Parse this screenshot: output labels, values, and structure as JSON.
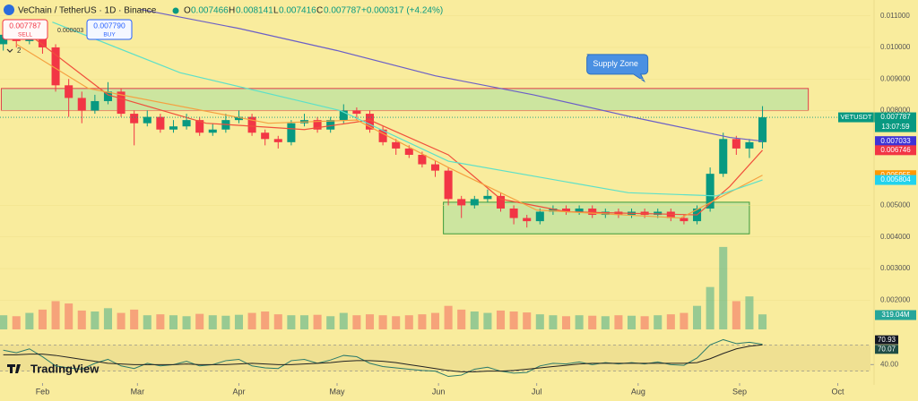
{
  "header": {
    "title": "VeChain / TetherUS · 1D · Binance",
    "o_label": "O",
    "open": "0.007466",
    "h_label": "H",
    "high": "0.008141",
    "l_label": "L",
    "low": "0.007416",
    "c_label": "C",
    "close": "0.007787",
    "change": "+0.000317 (+4.24%)",
    "sell_price": "0.007787",
    "sell": "SELL",
    "spread": "0.000003",
    "buy_price": "0.007790",
    "buy": "BUY",
    "indicators_count": "2",
    "brand": "TradingView"
  },
  "chart_data": {
    "type": "candlestick",
    "x": [
      -12,
      -8,
      -4,
      0,
      4,
      8,
      12,
      16,
      20,
      24,
      28,
      32,
      36,
      40,
      44,
      48,
      52,
      56,
      60,
      64,
      68,
      72,
      76,
      80,
      84,
      88,
      92,
      96,
      100,
      104,
      108,
      112,
      116,
      120,
      124,
      128,
      132,
      136,
      140,
      144,
      148,
      152,
      156,
      160,
      164,
      168,
      172,
      176,
      180,
      184,
      188,
      192,
      196,
      200,
      204,
      208,
      212,
      216,
      220
    ],
    "open": [
      0.0101,
      0.0104,
      0.0102,
      0.0106,
      0.01,
      0.0088,
      0.0084,
      0.008,
      0.0083,
      0.0086,
      0.0079,
      0.0076,
      0.0078,
      0.0074,
      0.0075,
      0.0077,
      0.0073,
      0.0074,
      0.0077,
      0.0078,
      0.0073,
      0.0071,
      0.007,
      0.0076,
      0.0077,
      0.0074,
      0.0077,
      0.008,
      0.0079,
      0.0074,
      0.007,
      0.0068,
      0.0066,
      0.0063,
      0.0061,
      0.0052,
      0.005,
      0.0052,
      0.0053,
      0.0049,
      0.0046,
      0.0045,
      0.0048,
      0.0049,
      0.0048,
      0.0049,
      0.0047,
      0.0048,
      0.0047,
      0.0048,
      0.0047,
      0.0048,
      0.0046,
      0.0045,
      0.0049,
      0.006,
      0.0071,
      0.0068,
      0.007
    ],
    "high": [
      0.0106,
      0.0107,
      0.0108,
      0.0107,
      0.0101,
      0.009,
      0.0086,
      0.0085,
      0.0089,
      0.0087,
      0.008,
      0.008,
      0.0079,
      0.0077,
      0.0079,
      0.0078,
      0.0076,
      0.0079,
      0.008,
      0.0079,
      0.0074,
      0.0072,
      0.0077,
      0.0079,
      0.0078,
      0.0078,
      0.0082,
      0.0081,
      0.008,
      0.0075,
      0.0071,
      0.0069,
      0.0067,
      0.0064,
      0.0062,
      0.0053,
      0.0053,
      0.0055,
      0.0054,
      0.005,
      0.0047,
      0.0049,
      0.005,
      0.005,
      0.005,
      0.005,
      0.0049,
      0.0049,
      0.0049,
      0.0049,
      0.0049,
      0.0049,
      0.0047,
      0.005,
      0.0062,
      0.0073,
      0.0072,
      0.0071,
      0.008141
    ],
    "low": [
      0.0099,
      0.01,
      0.0101,
      0.0098,
      0.0086,
      0.0078,
      0.0076,
      0.0079,
      0.0082,
      0.0078,
      0.0069,
      0.0075,
      0.0073,
      0.0073,
      0.0074,
      0.0072,
      0.0072,
      0.0073,
      0.0076,
      0.0072,
      0.0069,
      0.0068,
      0.0069,
      0.0075,
      0.0073,
      0.0073,
      0.0076,
      0.0077,
      0.0073,
      0.0069,
      0.0066,
      0.0065,
      0.0062,
      0.0059,
      0.005,
      0.0046,
      0.0049,
      0.0051,
      0.0048,
      0.0044,
      0.0043,
      0.0044,
      0.0047,
      0.0047,
      0.0047,
      0.0046,
      0.0046,
      0.0046,
      0.0046,
      0.0046,
      0.0046,
      0.0045,
      0.0044,
      0.0044,
      0.0048,
      0.0059,
      0.0066,
      0.0065,
      0.0068
    ],
    "close": [
      0.0104,
      0.0102,
      0.0106,
      0.01,
      0.0088,
      0.0084,
      0.008,
      0.0083,
      0.0086,
      0.0079,
      0.0076,
      0.0078,
      0.0074,
      0.0075,
      0.0077,
      0.0073,
      0.0074,
      0.0077,
      0.0078,
      0.0073,
      0.0071,
      0.007,
      0.0076,
      0.0077,
      0.0074,
      0.0077,
      0.008,
      0.0079,
      0.0074,
      0.007,
      0.0068,
      0.0066,
      0.0063,
      0.0061,
      0.0052,
      0.005,
      0.0052,
      0.0053,
      0.0049,
      0.0046,
      0.0045,
      0.0048,
      0.0049,
      0.0048,
      0.0049,
      0.0047,
      0.0048,
      0.0047,
      0.0048,
      0.0047,
      0.0048,
      0.0046,
      0.0045,
      0.0049,
      0.006,
      0.0071,
      0.0068,
      0.007,
      0.007787
    ],
    "up_color": "#089981",
    "down_color": "#f23645",
    "symbol": "VETUSDT",
    "countdown": "13:07:59",
    "xlim": [
      -13,
      253
    ],
    "xticks": [
      {
        "value": 0,
        "label": "Feb"
      },
      {
        "value": 29,
        "label": "Mar"
      },
      {
        "value": 60,
        "label": "Apr"
      },
      {
        "value": 90,
        "label": "May"
      },
      {
        "value": 121,
        "label": "Jun"
      },
      {
        "value": 151,
        "label": "Jul"
      },
      {
        "value": 182,
        "label": "Aug"
      },
      {
        "value": 213,
        "label": "Sep"
      },
      {
        "value": 243,
        "label": "Oct"
      }
    ],
    "ylim": [
      0.0015,
      0.0115
    ],
    "yticks": [
      {
        "value": 0.002,
        "label": "0.002000"
      },
      {
        "value": 0.003,
        "label": "0.003000"
      },
      {
        "value": 0.004,
        "label": "0.004000"
      },
      {
        "value": 0.005,
        "label": "0.005000"
      },
      {
        "value": 0.008,
        "label": "0.008000"
      },
      {
        "value": 0.009,
        "label": "0.009000"
      },
      {
        "value": 0.01,
        "label": "0.010000"
      },
      {
        "value": 0.011,
        "label": "0.011000"
      }
    ],
    "lines": [
      {
        "color": "#6b5fc7",
        "label_color": "#3f33d6",
        "x": [
          30,
          60,
          90,
          120,
          150,
          180,
          210,
          220
        ],
        "values": [
          0.0112,
          0.0106,
          0.0099,
          0.0091,
          0.0085,
          0.0078,
          0.00715,
          0.007033
        ]
      },
      {
        "color": "#f0503c",
        "label_color": "#f23645",
        "x": [
          -4,
          20,
          50,
          80,
          100,
          124,
          140,
          160,
          200,
          210,
          220
        ],
        "values": [
          0.0104,
          0.0085,
          0.0076,
          0.0074,
          0.0077,
          0.0066,
          0.0052,
          0.0048,
          0.0047,
          0.0056,
          0.006746
        ]
      },
      {
        "color": "#f5a040",
        "label_color": "#ff9800",
        "x": [
          -8,
          14,
          69,
          96,
          124,
          151,
          195,
          220
        ],
        "values": [
          0.0101,
          0.0087,
          0.0076,
          0.0077,
          0.0062,
          0.00485,
          0.0046,
          0.005955
        ]
      },
      {
        "color": "#5ee0c8",
        "label_color": "#22d3ee",
        "x": [
          3,
          42,
          91,
          124,
          179,
          206,
          220
        ],
        "values": [
          0.0108,
          0.0092,
          0.008,
          0.0064,
          0.0054,
          0.0053,
          0.005804
        ]
      }
    ],
    "zones": [
      {
        "label": "Supply Zone",
        "color": "#e0404a",
        "fill": "#a8e0a0",
        "xlim": [
          -12.6,
          234
        ],
        "ylim": [
          0.008,
          0.0087
        ]
      },
      {
        "color": "#3a9a3a",
        "fill": "#a8e0a0",
        "xlim": [
          122.5,
          216
        ],
        "ylim": [
          0.0041,
          0.0051
        ]
      }
    ],
    "volume": {
      "ylim": [
        0,
        1900
      ],
      "last_label": "319.04M",
      "values": [
        300,
        280,
        350,
        420,
        600,
        550,
        400,
        380,
        450,
        350,
        420,
        300,
        320,
        300,
        280,
        330,
        300,
        290,
        310,
        350,
        380,
        320,
        300,
        300,
        310,
        280,
        350,
        300,
        320,
        300,
        280,
        300,
        320,
        350,
        500,
        420,
        380,
        350,
        400,
        380,
        360,
        320,
        300,
        280,
        300,
        290,
        280,
        300,
        290,
        280,
        300,
        320,
        350,
        500,
        900,
        1750,
        600,
        700,
        319.04
      ]
    },
    "rsi": {
      "ylim": [
        20,
        80
      ],
      "bands": [
        70,
        30
      ],
      "yticks": [
        {
          "value": 40,
          "label": "40.00"
        }
      ],
      "series": [
        {
          "color": "#2a7a6a",
          "values": [
            62,
            58,
            64,
            52,
            38,
            35,
            33,
            42,
            48,
            38,
            34,
            42,
            38,
            40,
            45,
            38,
            40,
            46,
            48,
            38,
            35,
            34,
            46,
            48,
            42,
            47,
            54,
            52,
            42,
            37,
            35,
            33,
            31,
            30,
            22,
            24,
            33,
            36,
            30,
            27,
            28,
            38,
            42,
            41,
            44,
            40,
            43,
            41,
            43,
            41,
            44,
            40,
            39,
            50,
            70,
            78,
            72,
            74,
            70.93
          ]
        },
        {
          "color": "#222222",
          "values": [
            55,
            55,
            56,
            56,
            54,
            51,
            48,
            45,
            42,
            41,
            40,
            40,
            40,
            40,
            41,
            40,
            40,
            40,
            41,
            42,
            41,
            40,
            40,
            41,
            42,
            43,
            45,
            46,
            46,
            45,
            43,
            40,
            37,
            34,
            31,
            29,
            29,
            30,
            30,
            31,
            33,
            35,
            37,
            39,
            41,
            42,
            42,
            42,
            42,
            42,
            42,
            42,
            42,
            43,
            49,
            57,
            64,
            68,
            70.07
          ]
        }
      ]
    }
  }
}
